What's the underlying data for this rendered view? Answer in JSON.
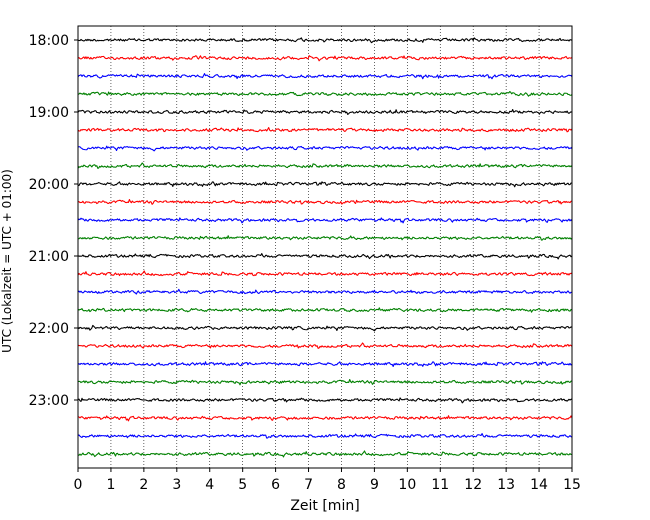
{
  "chart_data": {
    "type": "line",
    "subtype": "helicorder",
    "xlabel": "Zeit  [min]",
    "ylabel": "UTC (Lokalzeit = UTC + 01:00)",
    "xlim": [
      0,
      15
    ],
    "x_ticks": [
      0,
      1,
      2,
      3,
      4,
      5,
      6,
      7,
      8,
      9,
      10,
      11,
      12,
      13,
      14,
      15
    ],
    "y_ticks": [
      "18:00",
      "19:00",
      "20:00",
      "21:00",
      "22:00",
      "23:00"
    ],
    "x_grid": "dotted vertical lines at each minute",
    "trace_interval_minutes": 15,
    "start_time_utc": "18:00",
    "trace_count": 24,
    "trace_colors": [
      "#000000",
      "#ff0000",
      "#0000ff",
      "#008000"
    ],
    "traces": [
      {
        "start": "18:00",
        "color": "#000000"
      },
      {
        "start": "18:15",
        "color": "#ff0000"
      },
      {
        "start": "18:30",
        "color": "#0000ff"
      },
      {
        "start": "18:45",
        "color": "#008000"
      },
      {
        "start": "19:00",
        "color": "#000000"
      },
      {
        "start": "19:15",
        "color": "#ff0000"
      },
      {
        "start": "19:30",
        "color": "#0000ff"
      },
      {
        "start": "19:45",
        "color": "#008000"
      },
      {
        "start": "20:00",
        "color": "#000000"
      },
      {
        "start": "20:15",
        "color": "#ff0000"
      },
      {
        "start": "20:30",
        "color": "#0000ff"
      },
      {
        "start": "20:45",
        "color": "#008000"
      },
      {
        "start": "21:00",
        "color": "#000000"
      },
      {
        "start": "21:15",
        "color": "#ff0000"
      },
      {
        "start": "21:30",
        "color": "#0000ff"
      },
      {
        "start": "21:45",
        "color": "#008000"
      },
      {
        "start": "22:00",
        "color": "#000000"
      },
      {
        "start": "22:15",
        "color": "#ff0000"
      },
      {
        "start": "22:30",
        "color": "#0000ff"
      },
      {
        "start": "22:45",
        "color": "#008000"
      },
      {
        "start": "23:00",
        "color": "#000000"
      },
      {
        "start": "23:15",
        "color": "#ff0000"
      },
      {
        "start": "23:30",
        "color": "#0000ff"
      },
      {
        "start": "23:45",
        "color": "#008000"
      }
    ]
  }
}
